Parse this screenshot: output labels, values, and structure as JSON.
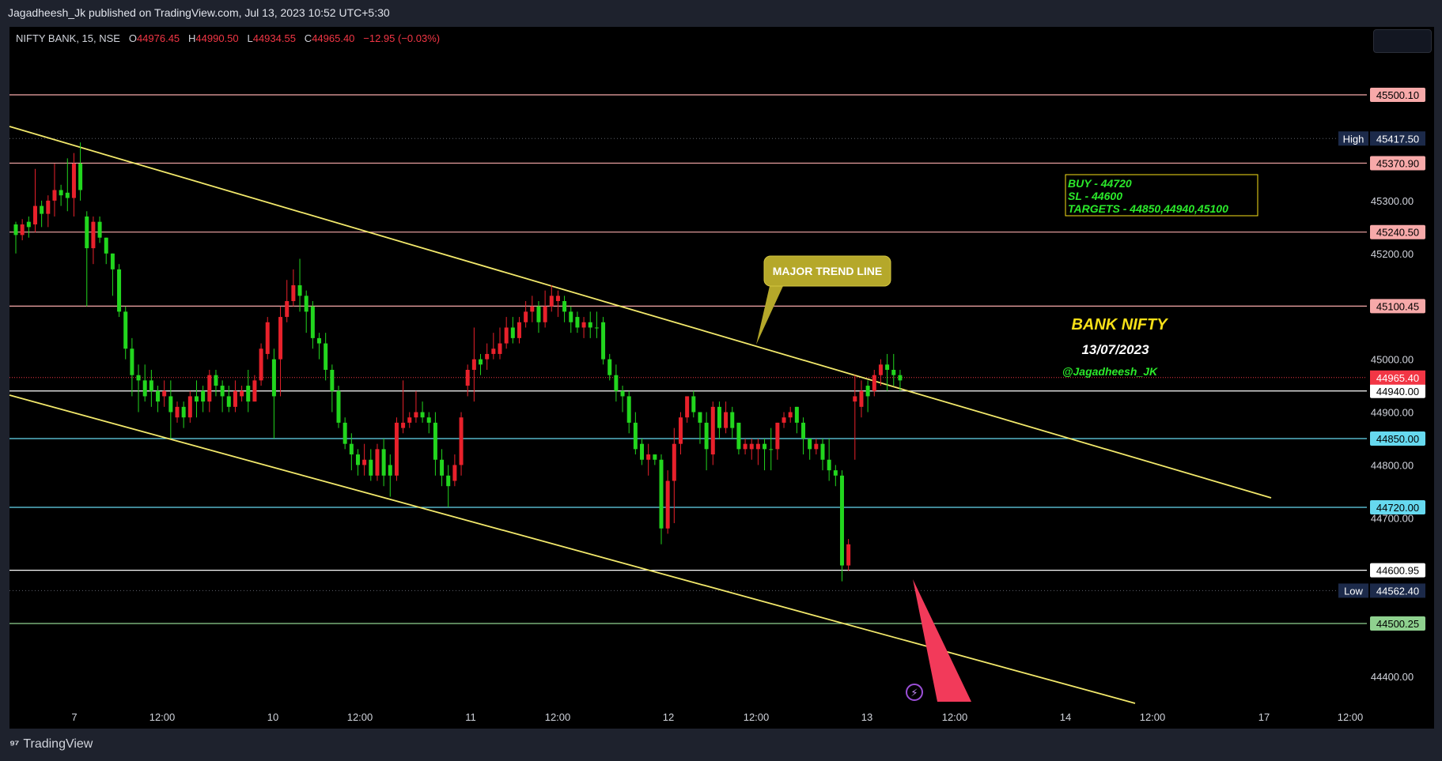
{
  "header": {
    "publish_line": "Jagadheesh_Jk published on TradingView.com, Jul 13, 2023 10:52 UTC+5:30"
  },
  "legend": {
    "symbol": "NIFTY BANK, 15, NSE",
    "o_label": "O",
    "o_value": "44976.45",
    "h_label": "H",
    "h_value": "44990.50",
    "l_label": "L",
    "l_value": "44934.55",
    "c_label": "C",
    "c_value": "44965.40",
    "change": "−12.95 (−0.03%)"
  },
  "footer": {
    "brand": "TradingView",
    "logo_icon": "tradingview-logo-icon"
  },
  "colors": {
    "up": "#22d61e",
    "down": "#e8212b",
    "trend": "#f2e86b",
    "level_red": "#f7a9a9",
    "level_cyan": "#66d9ef",
    "level_white": "#ffffff",
    "level_green": "#8fd18f",
    "annotation_yellow": "#f7e018",
    "annotation_green": "#2bea2b"
  },
  "chart_data": {
    "type": "candlestick",
    "symbol": "NIFTY BANK",
    "interval": "15",
    "exchange": "NSE",
    "ylim": [
      44340,
      45580
    ],
    "y_ticks": [
      "45300.00",
      "45200.00",
      "45000.00",
      "44900.00",
      "44800.00",
      "44700.00",
      "44400.00"
    ],
    "x_ticks": [
      "7",
      "12:00",
      "10",
      "12:00",
      "11",
      "12:00",
      "12",
      "12:00",
      "13",
      "12:00",
      "14",
      "12:00",
      "17",
      "12:00"
    ],
    "high_label": "High",
    "high_value": "45417.50",
    "low_label": "Low",
    "low_value": "44562.40",
    "last_price": "44965.40",
    "horizontal_levels": [
      {
        "value": "45500.10",
        "color": "red"
      },
      {
        "value": "45370.90",
        "color": "red"
      },
      {
        "value": "45240.50",
        "color": "red"
      },
      {
        "value": "45100.45",
        "color": "red"
      },
      {
        "value": "44940.00",
        "color": "white"
      },
      {
        "value": "44850.00",
        "color": "cyan"
      },
      {
        "value": "44720.00",
        "color": "cyan"
      },
      {
        "value": "44600.95",
        "color": "white"
      },
      {
        "value": "44500.25",
        "color": "green"
      }
    ],
    "callout": "MAJOR TREND LINE",
    "trade_box": [
      "BUY - 44720",
      "SL - 44600",
      "TARGETS - 44850,44940,45100"
    ],
    "title_annotation": "BANK NIFTY",
    "date_annotation": "13/07/2023",
    "author_annotation": "@Jagadheesh_JK",
    "candles": [
      [
        45235,
        45255,
        45200,
        45260
      ],
      [
        45255,
        45235,
        45225,
        45265
      ],
      [
        45250,
        45260,
        45230,
        45270
      ],
      [
        45290,
        45255,
        45240,
        45360
      ],
      [
        45275,
        45290,
        45250,
        45300
      ],
      [
        45300,
        45275,
        45250,
        45310
      ],
      [
        45320,
        45300,
        45270,
        45370
      ],
      [
        45310,
        45320,
        45290,
        45330
      ],
      [
        45305,
        45315,
        45280,
        45380
      ],
      [
        45370,
        45305,
        45270,
        45390
      ],
      [
        45320,
        45370,
        45300,
        45410
      ],
      [
        45210,
        45270,
        45100,
        45280
      ],
      [
        45260,
        45210,
        45180,
        45270
      ],
      [
        45230,
        45260,
        45220,
        45270
      ],
      [
        45200,
        45230,
        45180,
        45230
      ],
      [
        45170,
        45200,
        45120,
        45200
      ],
      [
        45090,
        45170,
        45080,
        45180
      ],
      [
        45020,
        45090,
        45000,
        45100
      ],
      [
        44970,
        45020,
        44930,
        45040
      ],
      [
        44960,
        44970,
        44900,
        44990
      ],
      [
        44930,
        44960,
        44920,
        44990
      ],
      [
        44940,
        44960,
        44910,
        44980
      ],
      [
        44920,
        44940,
        44900,
        44950
      ],
      [
        44940,
        44930,
        44910,
        44960
      ],
      [
        44900,
        44930,
        44850,
        44960
      ],
      [
        44910,
        44890,
        44880,
        44920
      ],
      [
        44890,
        44910,
        44870,
        44920
      ],
      [
        44930,
        44890,
        44880,
        44940
      ],
      [
        44920,
        44930,
        44890,
        44960
      ],
      [
        44920,
        44940,
        44900,
        44950
      ],
      [
        44970,
        44920,
        44900,
        44980
      ],
      [
        44950,
        44970,
        44930,
        44980
      ],
      [
        44930,
        44950,
        44900,
        44960
      ],
      [
        44910,
        44930,
        44900,
        44950
      ],
      [
        44940,
        44910,
        44900,
        44960
      ],
      [
        44940,
        44930,
        44920,
        44950
      ],
      [
        44920,
        44950,
        44900,
        44980
      ],
      [
        44960,
        44920,
        44920,
        44970
      ],
      [
        45020,
        44960,
        44950,
        45030
      ],
      [
        45070,
        45010,
        45000,
        45080
      ],
      [
        44930,
        45000,
        44850,
        45020
      ],
      [
        45080,
        45000,
        44930,
        45100
      ],
      [
        45110,
        45080,
        45070,
        45150
      ],
      [
        45140,
        45110,
        45100,
        45170
      ],
      [
        45120,
        45140,
        45090,
        45190
      ],
      [
        45090,
        45120,
        45050,
        45130
      ],
      [
        45040,
        45100,
        45020,
        45110
      ],
      [
        45030,
        45040,
        45000,
        45050
      ],
      [
        44980,
        45030,
        44960,
        45050
      ],
      [
        44940,
        44980,
        44900,
        44990
      ],
      [
        44880,
        44940,
        44870,
        44950
      ],
      [
        44840,
        44880,
        44830,
        44890
      ],
      [
        44820,
        44840,
        44790,
        44860
      ],
      [
        44800,
        44820,
        44780,
        44830
      ],
      [
        44810,
        44800,
        44780,
        44840
      ],
      [
        44780,
        44810,
        44770,
        44830
      ],
      [
        44830,
        44780,
        44770,
        44840
      ],
      [
        44780,
        44830,
        44760,
        44850
      ],
      [
        44780,
        44800,
        44740,
        44820
      ],
      [
        44880,
        44780,
        44770,
        44890
      ],
      [
        44880,
        44870,
        44860,
        44960
      ],
      [
        44890,
        44880,
        44870,
        44900
      ],
      [
        44900,
        44890,
        44880,
        44940
      ],
      [
        44890,
        44900,
        44880,
        44920
      ],
      [
        44880,
        44890,
        44860,
        44900
      ],
      [
        44810,
        44880,
        44780,
        44900
      ],
      [
        44780,
        44810,
        44760,
        44830
      ],
      [
        44760,
        44780,
        44720,
        44800
      ],
      [
        44800,
        44770,
        44760,
        44820
      ],
      [
        44890,
        44800,
        44780,
        44900
      ],
      [
        44980,
        44950,
        44930,
        44990
      ],
      [
        45000,
        44980,
        44920,
        45060
      ],
      [
        44990,
        45000,
        44970,
        45010
      ],
      [
        45010,
        45000,
        44980,
        45030
      ],
      [
        45020,
        45010,
        45000,
        45050
      ],
      [
        45030,
        45010,
        45000,
        45060
      ],
      [
        45060,
        45030,
        45020,
        45080
      ],
      [
        45040,
        45060,
        45030,
        45080
      ],
      [
        45070,
        45040,
        45030,
        45080
      ],
      [
        45090,
        45070,
        45060,
        45110
      ],
      [
        45100,
        45090,
        45070,
        45120
      ],
      [
        45070,
        45100,
        45050,
        45110
      ],
      [
        45100,
        45070,
        45060,
        45130
      ],
      [
        45120,
        45100,
        45090,
        45140
      ],
      [
        45120,
        45110,
        45080,
        45130
      ],
      [
        45090,
        45110,
        45070,
        45120
      ],
      [
        45070,
        45090,
        45050,
        45100
      ],
      [
        45060,
        45080,
        45050,
        45090
      ],
      [
        45070,
        45060,
        45040,
        45080
      ],
      [
        45060,
        45070,
        45040,
        45090
      ],
      [
        45060,
        45060,
        45040,
        45090
      ],
      [
        45000,
        45070,
        44990,
        45080
      ],
      [
        44970,
        45000,
        44960,
        45010
      ],
      [
        44940,
        44970,
        44920,
        44990
      ],
      [
        44930,
        44940,
        44900,
        44950
      ],
      [
        44880,
        44930,
        44860,
        44940
      ],
      [
        44830,
        44880,
        44820,
        44900
      ],
      [
        44810,
        44840,
        44800,
        44850
      ],
      [
        44820,
        44810,
        44780,
        44840
      ],
      [
        44810,
        44820,
        44800,
        44820
      ],
      [
        44680,
        44810,
        44650,
        44820
      ],
      [
        44770,
        44680,
        44670,
        44790
      ],
      [
        44840,
        44770,
        44690,
        44870
      ],
      [
        44890,
        44840,
        44820,
        44900
      ],
      [
        44930,
        44890,
        44880,
        44930
      ],
      [
        44900,
        44930,
        44890,
        44940
      ],
      [
        44880,
        44900,
        44840,
        44900
      ],
      [
        44830,
        44880,
        44790,
        44900
      ],
      [
        44910,
        44820,
        44800,
        44920
      ],
      [
        44870,
        44910,
        44850,
        44920
      ],
      [
        44900,
        44870,
        44860,
        44920
      ],
      [
        44870,
        44900,
        44850,
        44910
      ],
      [
        44830,
        44880,
        44820,
        44880
      ],
      [
        44840,
        44830,
        44820,
        44850
      ],
      [
        44840,
        44830,
        44810,
        44850
      ],
      [
        44840,
        44830,
        44800,
        44850
      ],
      [
        44830,
        44840,
        44790,
        44850
      ],
      [
        44830,
        44830,
        44790,
        44870
      ],
      [
        44880,
        44830,
        44810,
        44880
      ],
      [
        44890,
        44880,
        44870,
        44900
      ],
      [
        44900,
        44890,
        44880,
        44910
      ],
      [
        44880,
        44910,
        44860,
        44910
      ],
      [
        44850,
        44880,
        44820,
        44890
      ],
      [
        44830,
        44850,
        44810,
        44840
      ],
      [
        44840,
        44830,
        44820,
        44850
      ],
      [
        44810,
        44840,
        44790,
        44850
      ],
      [
        44790,
        44810,
        44770,
        44850
      ],
      [
        44780,
        44790,
        44760,
        44800
      ],
      [
        44610,
        44780,
        44580,
        44790
      ],
      [
        44650,
        44610,
        44600,
        44660
      ],
      [
        44930,
        44920,
        44810,
        44970
      ],
      [
        44940,
        44910,
        44890,
        44960
      ],
      [
        44930,
        44950,
        44900,
        44960
      ],
      [
        44970,
        44940,
        44930,
        44980
      ],
      [
        44990,
        44970,
        44950,
        45000
      ],
      [
        44980,
        44990,
        44940,
        45010
      ],
      [
        44970,
        44980,
        44950,
        45010
      ],
      [
        44960,
        44970,
        44940,
        44980
      ]
    ]
  }
}
